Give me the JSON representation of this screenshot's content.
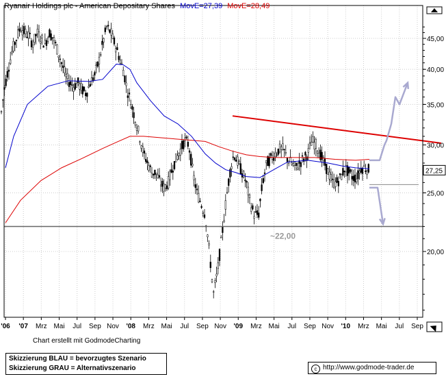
{
  "chart_data": {
    "type": "candlestick",
    "title": "Ryanair Holdings plc - American Depositary Shares",
    "moving_averages": [
      {
        "label": "MovE=27,39",
        "color": "#0000cc"
      },
      {
        "label": "MovE=28,49",
        "color": "#dd0000"
      }
    ],
    "y_scale": "log",
    "ylim": [
      15,
      48
    ],
    "y_ticks": [
      {
        "value": 45,
        "label": "45,00"
      },
      {
        "value": 40,
        "label": "40,00"
      },
      {
        "value": 35,
        "label": "35,00"
      },
      {
        "value": 30,
        "label": "30,00"
      },
      {
        "value": 25,
        "label": "25,00"
      },
      {
        "value": 20,
        "label": "20,00"
      }
    ],
    "last_price": {
      "value": 27.25,
      "label": "27,25"
    },
    "x_labels": [
      "'06",
      "'07",
      "Mrz",
      "Mai",
      "Jul",
      "Sep",
      "Nov",
      "'08",
      "Mrz",
      "Mai",
      "Jul",
      "Sep",
      "Nov",
      "'09",
      "Mrz",
      "Mai",
      "Jul",
      "Sep",
      "Nov",
      "'10",
      "Mrz",
      "Mai",
      "Jul",
      "Sep"
    ],
    "price_path": [
      [
        0,
        32.5
      ],
      [
        6,
        37
      ],
      [
        12,
        40
      ],
      [
        18,
        43
      ],
      [
        24,
        45
      ],
      [
        30,
        47
      ],
      [
        36,
        46
      ],
      [
        42,
        45.5
      ],
      [
        48,
        44
      ],
      [
        54,
        46
      ],
      [
        60,
        45
      ],
      [
        66,
        44
      ],
      [
        72,
        46
      ],
      [
        78,
        45
      ],
      [
        84,
        43
      ],
      [
        90,
        41
      ],
      [
        96,
        39
      ],
      [
        102,
        38
      ],
      [
        108,
        37.5
      ],
      [
        114,
        38
      ],
      [
        120,
        37
      ],
      [
        126,
        36.5
      ],
      [
        132,
        38
      ],
      [
        138,
        39
      ],
      [
        144,
        41
      ],
      [
        150,
        44
      ],
      [
        156,
        47
      ],
      [
        162,
        46
      ],
      [
        168,
        44
      ],
      [
        174,
        42
      ],
      [
        180,
        40
      ],
      [
        186,
        37
      ],
      [
        192,
        35
      ],
      [
        198,
        33
      ],
      [
        204,
        31
      ],
      [
        210,
        29
      ],
      [
        216,
        28
      ],
      [
        222,
        27
      ],
      [
        228,
        27
      ],
      [
        234,
        26
      ],
      [
        240,
        25.5
      ],
      [
        246,
        26
      ],
      [
        252,
        27.5
      ],
      [
        258,
        28.5
      ],
      [
        264,
        29.5
      ],
      [
        270,
        30.5
      ],
      [
        276,
        30
      ],
      [
        282,
        27
      ],
      [
        288,
        25
      ],
      [
        294,
        24
      ],
      [
        300,
        23
      ],
      [
        306,
        20
      ],
      [
        312,
        17
      ],
      [
        318,
        18.5
      ],
      [
        324,
        21
      ],
      [
        330,
        24
      ],
      [
        336,
        27
      ],
      [
        342,
        29
      ],
      [
        348,
        28
      ],
      [
        354,
        27
      ],
      [
        360,
        26
      ],
      [
        366,
        24
      ],
      [
        372,
        23
      ],
      [
        378,
        23
      ],
      [
        384,
        26
      ],
      [
        390,
        28
      ],
      [
        396,
        28.5
      ],
      [
        402,
        29
      ],
      [
        408,
        29.5
      ],
      [
        414,
        29.5
      ],
      [
        420,
        28.5
      ],
      [
        426,
        28
      ],
      [
        432,
        27.5
      ],
      [
        438,
        28
      ],
      [
        444,
        28.5
      ],
      [
        450,
        29
      ],
      [
        456,
        30.5
      ],
      [
        462,
        30
      ],
      [
        468,
        29
      ],
      [
        474,
        28
      ],
      [
        480,
        27
      ],
      [
        486,
        26
      ],
      [
        492,
        26
      ],
      [
        498,
        26.5
      ],
      [
        504,
        27.5
      ],
      [
        510,
        27
      ],
      [
        516,
        26.5
      ],
      [
        522,
        26.5
      ],
      [
        528,
        27.5
      ],
      [
        534,
        27.5
      ],
      [
        540,
        27.25
      ]
    ],
    "ma_blue_path": [
      [
        8,
        27.5
      ],
      [
        20,
        31
      ],
      [
        40,
        35
      ],
      [
        70,
        37.5
      ],
      [
        100,
        38.3
      ],
      [
        130,
        38.2
      ],
      [
        150,
        38.5
      ],
      [
        170,
        40.8
      ],
      [
        180,
        40.7
      ],
      [
        190,
        40
      ],
      [
        200,
        38
      ],
      [
        220,
        35.5
      ],
      [
        240,
        33.5
      ],
      [
        260,
        32.5
      ],
      [
        280,
        31
      ],
      [
        300,
        29
      ],
      [
        315,
        28
      ],
      [
        330,
        27.3
      ],
      [
        345,
        27
      ],
      [
        360,
        26.6
      ],
      [
        380,
        26.5
      ],
      [
        400,
        27.3
      ],
      [
        420,
        28.1
      ],
      [
        450,
        28.3
      ],
      [
        480,
        28
      ],
      [
        500,
        27.7
      ],
      [
        520,
        27.5
      ],
      [
        540,
        27.4
      ]
    ],
    "ma_red_path": [
      [
        8,
        22.3
      ],
      [
        30,
        24.3
      ],
      [
        60,
        26.2
      ],
      [
        90,
        27.5
      ],
      [
        120,
        28.5
      ],
      [
        150,
        29.6
      ],
      [
        170,
        30.3
      ],
      [
        190,
        31
      ],
      [
        210,
        31
      ],
      [
        240,
        30.8
      ],
      [
        270,
        30.6
      ],
      [
        300,
        30.4
      ],
      [
        320,
        29.8
      ],
      [
        340,
        29.3
      ],
      [
        360,
        28.9
      ],
      [
        380,
        28.7
      ],
      [
        400,
        28.6
      ],
      [
        430,
        28.6
      ],
      [
        460,
        28.6
      ],
      [
        490,
        28.4
      ],
      [
        520,
        28.3
      ],
      [
        540,
        28.4
      ]
    ],
    "resistance_line": {
      "from": [
        340,
        33.5
      ],
      "to": [
        645,
        30.2
      ],
      "color": "#dd0000"
    },
    "support_level": {
      "value": 22.0,
      "label": "~22,00"
    },
    "neckline": {
      "from": [
        540,
        25.8
      ],
      "to": [
        612,
        25.8
      ]
    },
    "scenario_blue": [
      [
        540,
        28.3
      ],
      [
        555,
        28.3
      ],
      [
        562,
        30
      ],
      [
        565,
        30.5
      ],
      [
        572,
        32.5
      ],
      [
        578,
        36
      ],
      [
        584,
        35
      ],
      [
        596,
        38
      ]
    ],
    "scenario_gray": [
      [
        540,
        25.5
      ],
      [
        552,
        25.5
      ],
      [
        560,
        22.2
      ]
    ],
    "grid": true,
    "grid_color": "#cccccc"
  },
  "captions": {
    "charting_credit": "Chart erstellt mit GodmodeCharting",
    "legend_blue": "Skizzierung BLAU = bevorzugtes Szenario",
    "legend_gray": "Skizzierung GRAU = Alternativszenario",
    "website": "http://www.godmode-trader.de",
    "copyright_symbol": "c"
  }
}
